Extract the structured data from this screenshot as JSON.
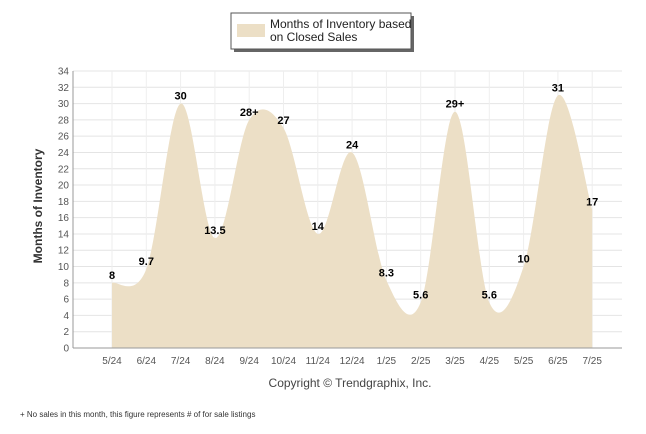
{
  "chart_data": {
    "type": "area",
    "legend": {
      "label_line1": "Months of Inventory based",
      "label_line2": "on Closed Sales",
      "color": "#ecdfc6",
      "placement": "top-center"
    },
    "ylabel": "Months of Inventory",
    "ylim": [
      0,
      34
    ],
    "yticks": [
      0,
      2,
      4,
      6,
      8,
      10,
      12,
      14,
      16,
      18,
      20,
      22,
      24,
      26,
      28,
      30,
      32,
      34
    ],
    "grid": true,
    "categories": [
      "5/24",
      "6/24",
      "7/24",
      "8/24",
      "9/24",
      "10/24",
      "11/24",
      "12/24",
      "1/25",
      "2/25",
      "3/25",
      "4/25",
      "5/25",
      "6/25",
      "7/25"
    ],
    "values": [
      8,
      9.7,
      30,
      13.5,
      28,
      27,
      14,
      24,
      8.3,
      5.6,
      29,
      5.6,
      10,
      31,
      17
    ],
    "labels": [
      "8",
      "9.7",
      "30",
      "13.5",
      "28+",
      "27",
      "14",
      "24",
      "8.3",
      "5.6",
      "29+",
      "5.6",
      "10",
      "31",
      "17"
    ],
    "area_color": "#ecdfc6"
  },
  "copyright": "Copyright © Trendgraphix, Inc.",
  "footnote": "+  No sales in this month, this figure represents # of for sale listings"
}
